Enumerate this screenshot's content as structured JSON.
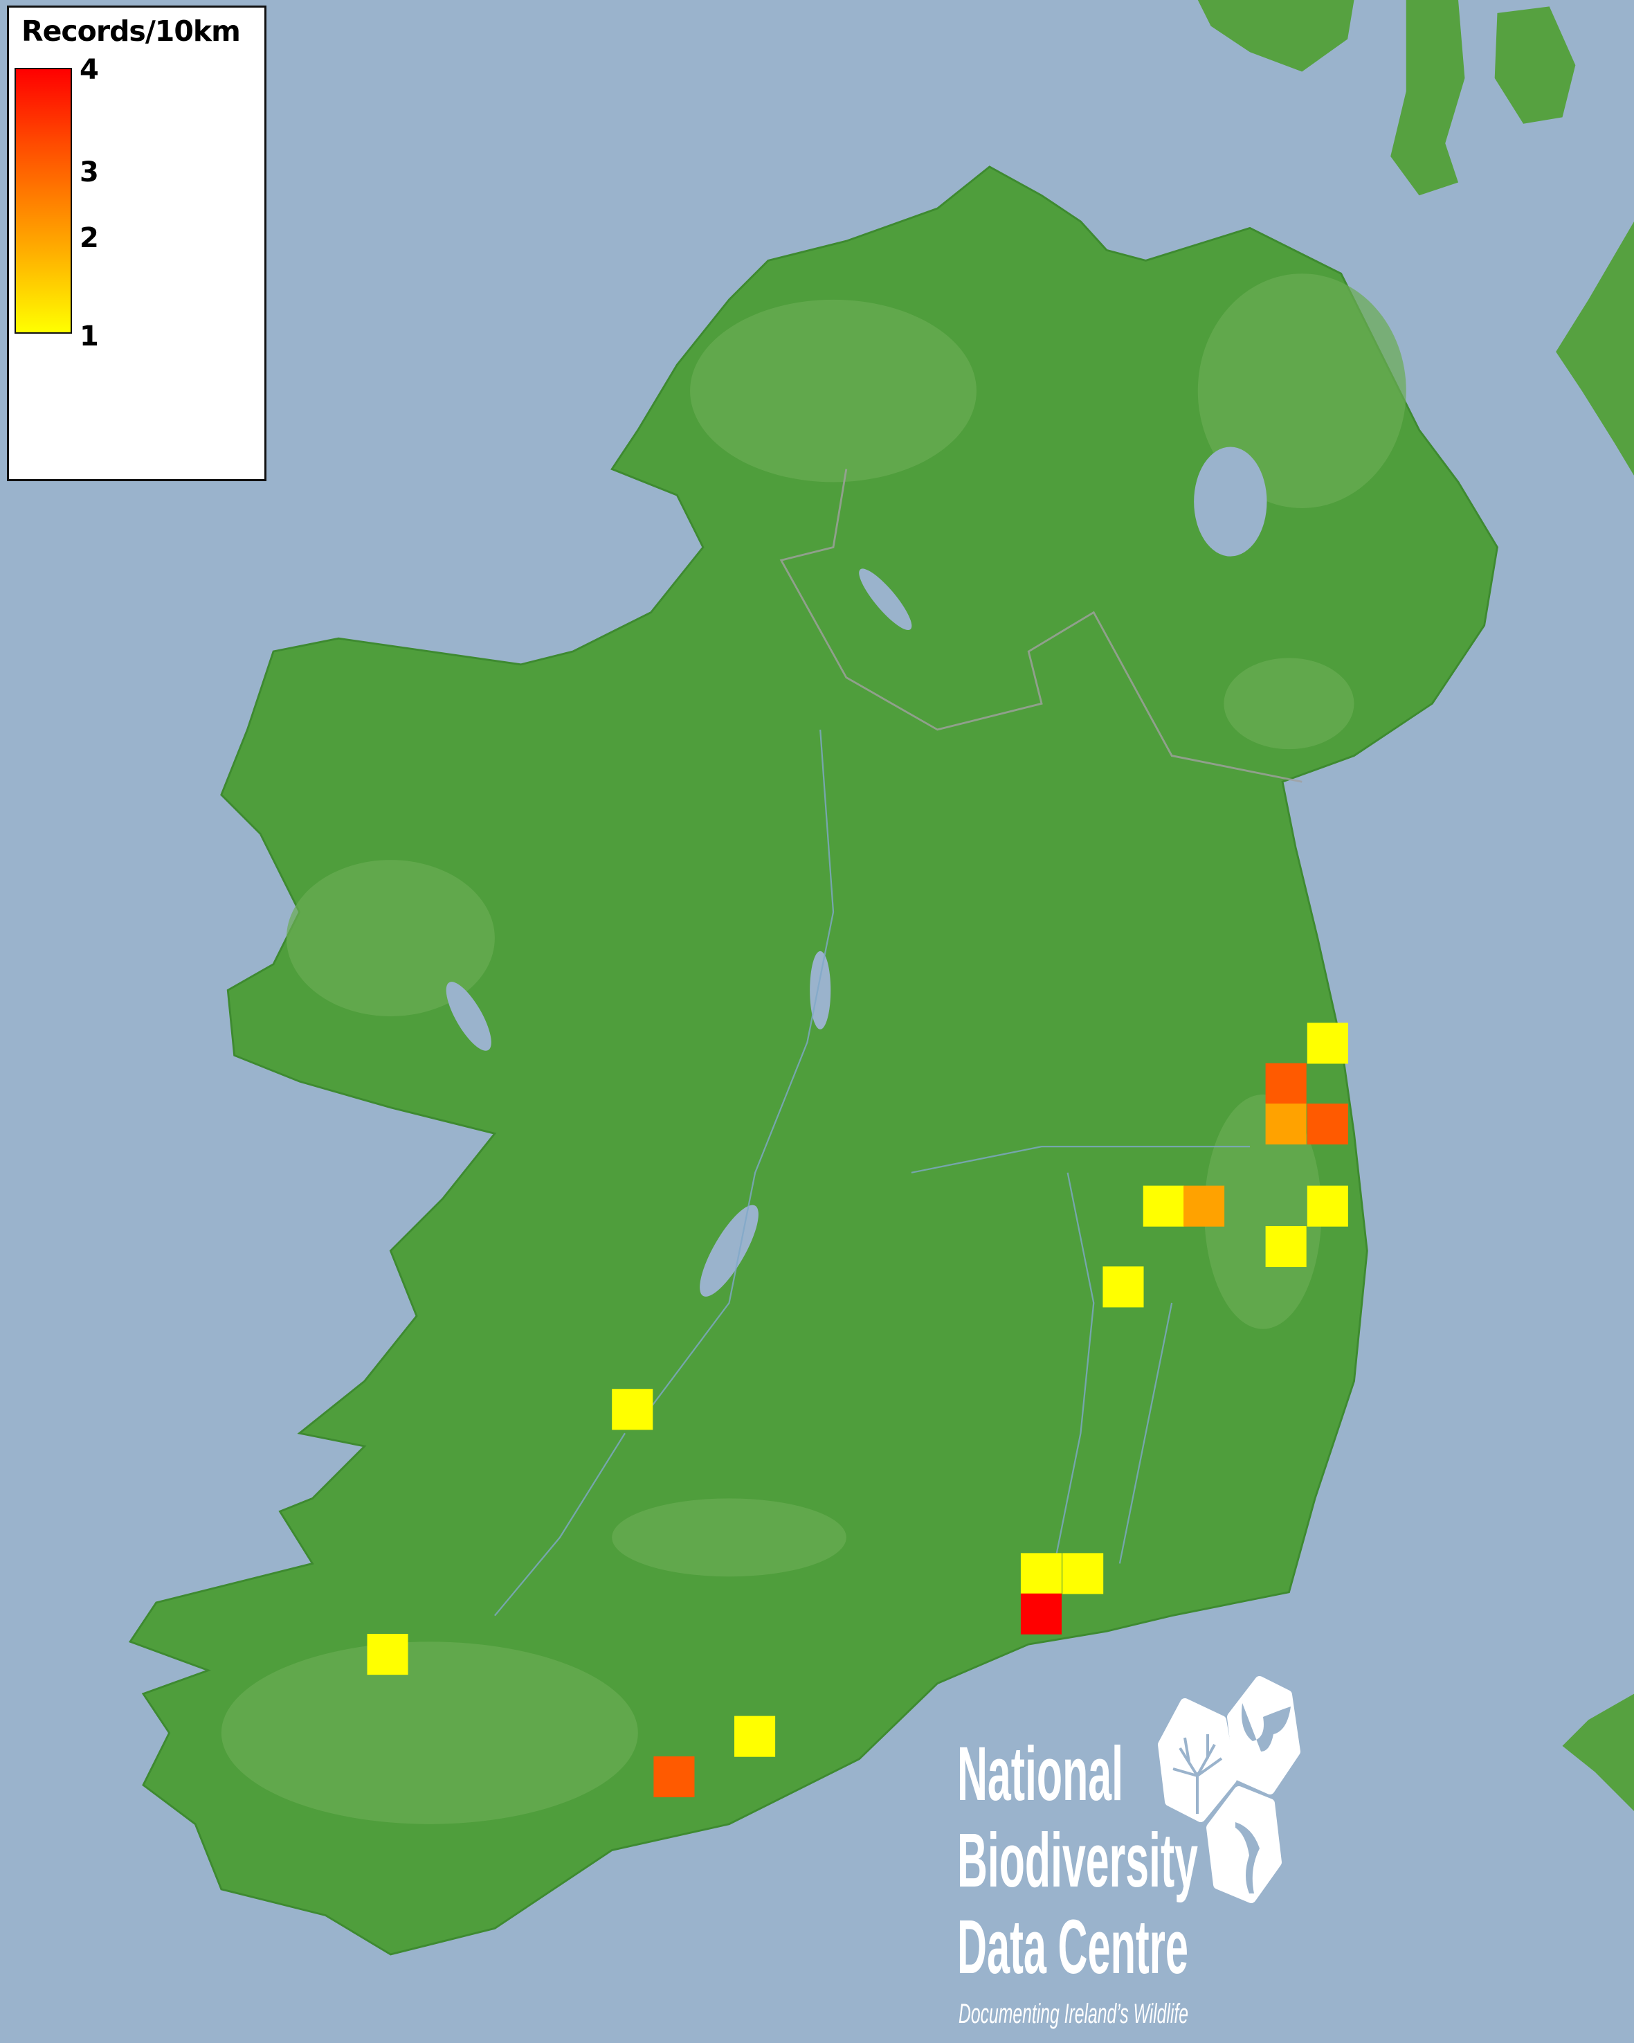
{
  "legend": {
    "title": "Records/10km",
    "scale_labels": [
      "4",
      "3",
      "2",
      "1"
    ],
    "color_min": "#ffff00",
    "color_max": "#ff0000"
  },
  "map": {
    "sea_color": "#9ab3cc",
    "land_color": "#4f9e3c",
    "records_per_square": [
      1,
      3,
      2,
      3,
      1,
      2,
      1,
      1,
      1,
      1,
      1,
      1,
      4,
      1,
      1,
      3
    ],
    "value_colors": {
      "1": "#ffff00",
      "2": "#ffa200",
      "3": "#ff5a00",
      "4": "#ff0000"
    }
  },
  "logo": {
    "line1": "National",
    "line2": "Biodiversity",
    "line3": "Data Centre",
    "tagline": "Documenting Ireland’s Wildlife",
    "icons": [
      "tree-icon",
      "butterfly-icon",
      "seahorse-icon"
    ]
  }
}
